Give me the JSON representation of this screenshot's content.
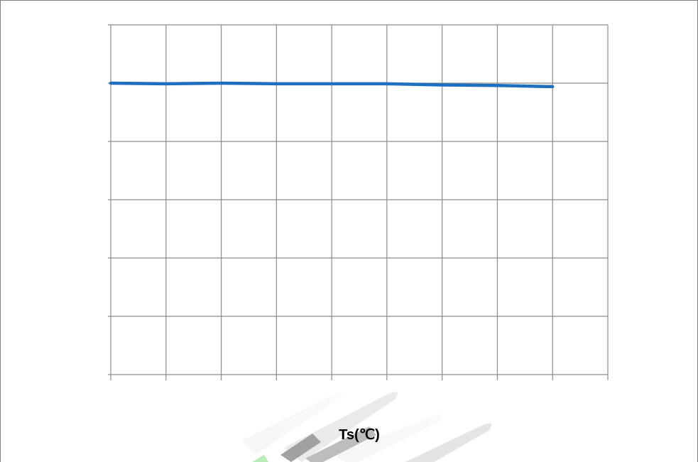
{
  "chart_data": {
    "type": "line",
    "title": "",
    "xlabel": "Ts(℃)",
    "ylabel": "",
    "grid": true,
    "legend": "none",
    "xlim": [
      0,
      9
    ],
    "ylim": [
      0,
      6
    ],
    "x": [
      0,
      1,
      2,
      3,
      4,
      5,
      6,
      7,
      8
    ],
    "series": [
      {
        "values": [
          5.0,
          4.99,
          5.0,
          4.99,
          4.99,
          4.99,
          4.97,
          4.96,
          4.94
        ]
      }
    ],
    "colors": {
      "line": "#1f6fc0",
      "grid": "#8c8c8c",
      "border": "#7f7f7f"
    }
  },
  "watermark": {
    "icon": "pen-brush-logo-watermark"
  }
}
